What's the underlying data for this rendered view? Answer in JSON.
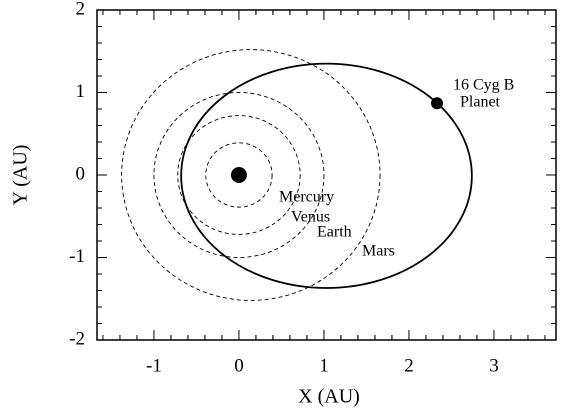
{
  "chart_data": {
    "type": "orbit",
    "x_label": "X (AU)",
    "y_label": "Y (AU)",
    "xlim": [
      -1.67,
      3.73
    ],
    "ylim": [
      -2,
      2
    ],
    "xticks": [
      -1,
      0,
      1,
      2,
      3
    ],
    "yticks": [
      -2,
      -1,
      0,
      1,
      2
    ],
    "minor_per_major": 5,
    "orbits": [
      {
        "name": "Mercury",
        "cx": 0,
        "cy": 0,
        "rx": 0.39,
        "ry": 0.39,
        "dashed": true
      },
      {
        "name": "Venus",
        "cx": 0,
        "cy": 0,
        "rx": 0.72,
        "ry": 0.72,
        "dashed": true
      },
      {
        "name": "Earth",
        "cx": 0,
        "cy": 0,
        "rx": 1.0,
        "ry": 1.0,
        "dashed": true
      },
      {
        "name": "Mars",
        "cx": 0.14,
        "cy": 0,
        "rx": 1.52,
        "ry": 1.52,
        "dashed": true
      },
      {
        "name": "16 Cyg B",
        "cx": 1.03,
        "cy": -0.01,
        "rx": 1.71,
        "ry": 1.36,
        "dashed": false
      }
    ],
    "bodies": [
      {
        "x": 0,
        "y": 0,
        "size": 8
      },
      {
        "name": "Planet",
        "x": 2.33,
        "y": 0.87,
        "size": 6
      }
    ],
    "color": "#000000"
  }
}
